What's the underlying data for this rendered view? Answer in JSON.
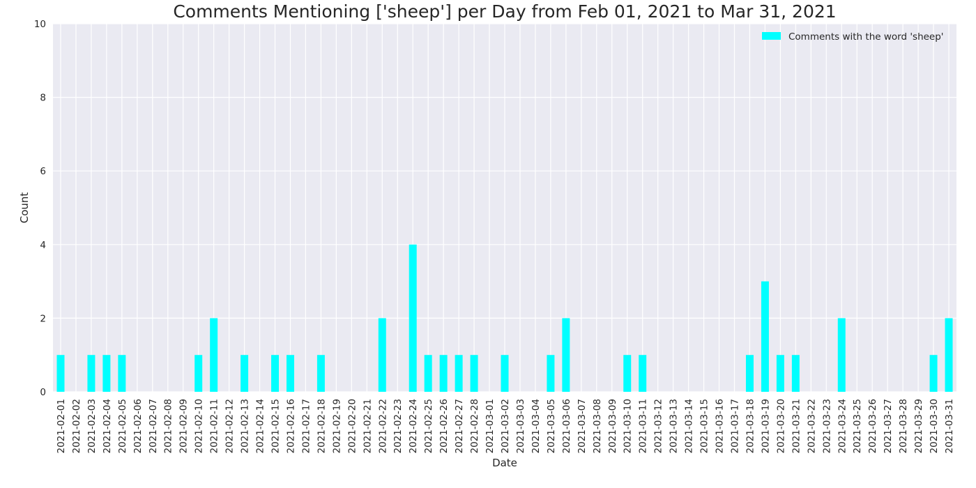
{
  "chart_data": {
    "type": "bar",
    "title": "Comments Mentioning ['sheep'] per Day from Feb 01, 2021 to Mar 31, 2021",
    "xlabel": "Date",
    "ylabel": "Count",
    "ylim": [
      0,
      10
    ],
    "y_ticks": [
      0,
      2,
      4,
      6,
      8,
      10
    ],
    "grid": true,
    "legend_position": "top-right",
    "categories": [
      "2021-02-01",
      "2021-02-02",
      "2021-02-03",
      "2021-02-04",
      "2021-02-05",
      "2021-02-06",
      "2021-02-07",
      "2021-02-08",
      "2021-02-09",
      "2021-02-10",
      "2021-02-11",
      "2021-02-12",
      "2021-02-13",
      "2021-02-14",
      "2021-02-15",
      "2021-02-16",
      "2021-02-17",
      "2021-02-18",
      "2021-02-19",
      "2021-02-20",
      "2021-02-21",
      "2021-02-22",
      "2021-02-23",
      "2021-02-24",
      "2021-02-25",
      "2021-02-26",
      "2021-02-27",
      "2021-02-28",
      "2021-03-01",
      "2021-03-02",
      "2021-03-03",
      "2021-03-04",
      "2021-03-05",
      "2021-03-06",
      "2021-03-07",
      "2021-03-08",
      "2021-03-09",
      "2021-03-10",
      "2021-03-11",
      "2021-03-12",
      "2021-03-13",
      "2021-03-14",
      "2021-03-15",
      "2021-03-16",
      "2021-03-17",
      "2021-03-18",
      "2021-03-19",
      "2021-03-20",
      "2021-03-21",
      "2021-03-22",
      "2021-03-23",
      "2021-03-24",
      "2021-03-25",
      "2021-03-26",
      "2021-03-27",
      "2021-03-28",
      "2021-03-29",
      "2021-03-30",
      "2021-03-31"
    ],
    "series": [
      {
        "name": "Comments with the word 'sheep'",
        "color": "#00ffff",
        "values": [
          1,
          0,
          1,
          1,
          1,
          0,
          0,
          0,
          0,
          1,
          2,
          0,
          1,
          0,
          1,
          1,
          0,
          1,
          0,
          0,
          0,
          2,
          0,
          4,
          1,
          1,
          1,
          1,
          0,
          1,
          0,
          0,
          1,
          2,
          0,
          0,
          0,
          1,
          1,
          0,
          0,
          0,
          0,
          0,
          0,
          1,
          3,
          1,
          1,
          0,
          0,
          2,
          0,
          0,
          0,
          0,
          0,
          1,
          2
        ]
      }
    ],
    "colors": {
      "plot_background": "#eaeaf2",
      "grid": "#ffffff"
    }
  }
}
